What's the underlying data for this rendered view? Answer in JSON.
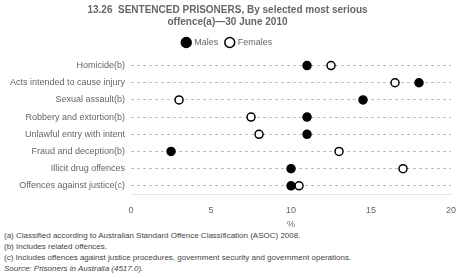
{
  "chart_data": {
    "type": "dot",
    "title": "13.26  SENTENCED PRISONERS, By selected most serious\noffence(a)—30 June 2010",
    "categories": [
      "Homicide(b)",
      "Acts intended to cause injury",
      "Sexual assault(b)",
      "Robbery and extortion(b)",
      "Unlawful entry with intent",
      "Fraud and deception(b)",
      "Illicit drug offences",
      "Offences against justice(c)"
    ],
    "series": [
      {
        "name": "Males",
        "color": "black",
        "marker": "circle",
        "values": [
          11.0,
          18.0,
          14.5,
          11.0,
          11.0,
          2.5,
          10.0,
          10.0
        ]
      },
      {
        "name": "Females",
        "color": "white",
        "marker": "circle",
        "values": [
          12.5,
          16.5,
          3.0,
          7.5,
          8.0,
          13.0,
          17.0,
          10.5
        ]
      }
    ],
    "orientation": "horizontal",
    "xlabel": "%",
    "xlim": [
      0,
      20
    ],
    "xticks": [
      0,
      5,
      10,
      15,
      20
    ],
    "grid": true,
    "legend": "top",
    "annotations": [
      "(a) Classified according to Australian Standard Offence Classification (ASOC) 2008.",
      "(b) Includes related offences.",
      "(c) Includes offences against justice procedures, government security and government operations.",
      "Source: Prisoners in Australia (4517.0)."
    ]
  }
}
